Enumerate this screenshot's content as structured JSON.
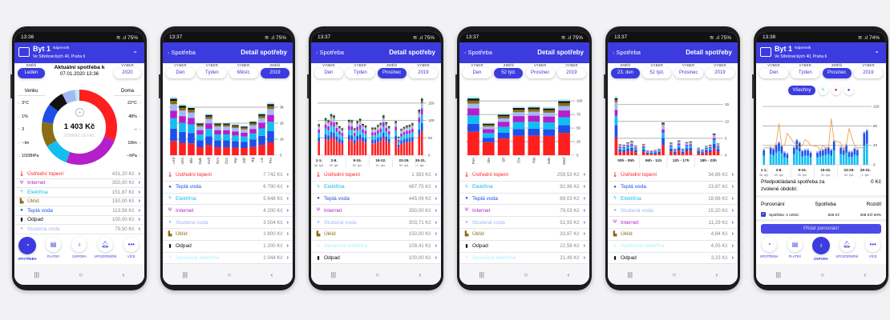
{
  "colors": {
    "heating": "#ff1f1f",
    "hot_water": "#1e4fe8",
    "electricity": "#12bdf0",
    "internet": "#b51fca",
    "cold_water": "#a3b8f5",
    "cleaning": "#8a6d14",
    "waste": "#111111",
    "shared_electricity": "#aef0fb",
    "accent": "#3b3be0",
    "line": "#f0a050"
  },
  "tabbar_labels": [
    "SPOTŘEBA",
    "PLATBY",
    "ÚSPORA",
    "UPOZORNĚNÍ",
    "VÍCE"
  ],
  "phones": [
    {
      "time": "13:36",
      "battery": "75%",
      "header": {
        "type": "apartment",
        "name": "Byt 1",
        "role": "Nájemník",
        "address": "Ve Střešovických 40, Praha 6"
      },
      "left_selector": {
        "caption": "ZMĚŇ",
        "value": "Leden"
      },
      "title": "Aktuální spotřeba k",
      "date": "07.01.2020 13:36",
      "right_selector": {
        "caption": "VYBER",
        "value": "2020"
      },
      "outside": {
        "label": "Venku",
        "values": [
          "3°C",
          "1%",
          "3",
          "--lm",
          "1028hPa"
        ]
      },
      "inside": {
        "label": "Doma",
        "values": [
          "22°C",
          "48%",
          "--",
          "10lm",
          "--hPa"
        ]
      },
      "total": "1 403 Kč",
      "detail_link": "ZOBRAZ DETAIL",
      "list": [
        {
          "key": "heating",
          "label": "Ústřední topení",
          "value": "431,20 Kč"
        },
        {
          "key": "internet",
          "label": "Internet",
          "value": "350,00 Kč"
        },
        {
          "key": "electricity",
          "label": "Elektřina",
          "value": "151,87 Kč"
        },
        {
          "key": "cleaning",
          "label": "Úklid",
          "value": "150,00 Kč"
        },
        {
          "key": "hot_water",
          "label": "Teplá voda",
          "value": "113,56 Kč"
        },
        {
          "key": "waste",
          "label": "Odpad",
          "value": "100,00 Kč"
        },
        {
          "key": "cold_water",
          "label": "Studená voda",
          "value": "79,50 Kč"
        }
      ],
      "tab_active": 0
    },
    {
      "time": "13:37",
      "battery": "75%",
      "header": {
        "type": "detail",
        "back": "Spotřeba",
        "title": "Detail spotřeby"
      },
      "selectors": [
        {
          "caption": "VYBER",
          "value": "Den"
        },
        {
          "caption": "VYBER",
          "value": "Týden"
        },
        {
          "caption": "VYBER",
          "value": "Měsíc"
        },
        {
          "caption": "ZMĚŇ",
          "value": "2019",
          "active": true
        }
      ],
      "chart_data": {
        "type": "bar",
        "stacked": true,
        "categories": [
          "Led",
          "Úno",
          "Bře",
          "Dub",
          "Kvě",
          "Čvn",
          "Čvc",
          "Srp",
          "Zář",
          "Říj",
          "Lis",
          "Pro"
        ],
        "values": [
          3650,
          3200,
          3050,
          2050,
          2600,
          2050,
          2050,
          1950,
          1850,
          2150,
          2650,
          3300
        ],
        "yticks": [
          0,
          1000,
          2000,
          3000
        ],
        "ytick_labels": [
          "0",
          "1k",
          "2k",
          "3k"
        ],
        "ylim": [
          0,
          3800
        ],
        "grid": true
      },
      "list": [
        {
          "key": "heating",
          "label": "Ústřední topení",
          "value": "7 742 Kč"
        },
        {
          "key": "hot_water",
          "label": "Teplá voda",
          "value": "6 790 Kč"
        },
        {
          "key": "electricity",
          "label": "Elektřina",
          "value": "5 648 Kč"
        },
        {
          "key": "internet",
          "label": "Internet",
          "value": "4 200 Kč"
        },
        {
          "key": "cold_water",
          "label": "Studená voda",
          "value": "3 504 Kč"
        },
        {
          "key": "cleaning",
          "label": "Úklid",
          "value": "1 800 Kč"
        },
        {
          "key": "waste",
          "label": "Odpad",
          "value": "1 200 Kč"
        },
        {
          "key": "shared_electricity",
          "label": "Společná elektřina",
          "value": "1 044 Kč"
        }
      ]
    },
    {
      "time": "13:37",
      "battery": "75%",
      "header": {
        "type": "detail",
        "back": "Spotřeba",
        "title": "Detail spotřeby"
      },
      "selectors": [
        {
          "caption": "VYBER",
          "value": "Den"
        },
        {
          "caption": "VYBER",
          "value": "Týden"
        },
        {
          "caption": "ZMĚŇ",
          "value": "Prosinec",
          "active": true
        },
        {
          "caption": "VYBER",
          "value": "2019"
        }
      ],
      "chart_data": {
        "type": "bar",
        "stacked": true,
        "groups": [
          {
            "label": "1-1.",
            "sub": "48. týd."
          },
          {
            "label": "2-8.",
            "sub": "49. týd."
          },
          {
            "label": "9-15.",
            "sub": "50. týd."
          },
          {
            "label": "16-22.",
            "sub": "51. týd."
          },
          {
            "label": "23-29.",
            "sub": "52. týd."
          },
          {
            "label": "30-31.",
            "sub": "1. týd."
          }
        ],
        "values": [
          92,
          110,
          104,
          122,
          118,
          98,
          86,
          80,
          105,
          104,
          80,
          102,
          108,
          93,
          88,
          82,
          82,
          90,
          96,
          118,
          98,
          86,
          102,
          55,
          78,
          84,
          88,
          90,
          95,
          135,
          168
        ],
        "yticks": [
          0,
          50,
          100,
          150
        ],
        "ytick_labels": [
          "0",
          "50",
          "100",
          "150"
        ],
        "ylim": [
          0,
          175
        ],
        "grid": true
      },
      "list": [
        {
          "key": "heating",
          "label": "Ústřední topení",
          "value": "1 383 Kč"
        },
        {
          "key": "electricity",
          "label": "Elektřina",
          "value": "487,75 Kč"
        },
        {
          "key": "hot_water",
          "label": "Teplá voda",
          "value": "445,06 Kč"
        },
        {
          "key": "internet",
          "label": "Internet",
          "value": "350,00 Kč"
        },
        {
          "key": "cold_water",
          "label": "Studená voda",
          "value": "303,71 Kč"
        },
        {
          "key": "cleaning",
          "label": "Úklid",
          "value": "150,00 Kč"
        },
        {
          "key": "shared_electricity",
          "label": "Společná elektřina",
          "value": "109,41 Kč"
        },
        {
          "key": "waste",
          "label": "Odpad",
          "value": "100,00 Kč"
        }
      ]
    },
    {
      "time": "13:37",
      "battery": "75%",
      "header": {
        "type": "detail",
        "back": "Spotřeba",
        "title": "Detail spotřeby"
      },
      "selectors": [
        {
          "caption": "VYBER",
          "value": "Den"
        },
        {
          "caption": "ZMĚŇ",
          "value": "52 týd.",
          "active": true
        },
        {
          "caption": "VYBER",
          "value": "Prosinec"
        },
        {
          "caption": "VYBER",
          "value": "2019"
        }
      ],
      "chart_data": {
        "type": "bar",
        "stacked": true,
        "categories": [
          "Pon",
          "Úte",
          "Stř",
          "Čtv",
          "Pát",
          "Sob",
          "Neď"
        ],
        "values": [
          108,
          60,
          77,
          90,
          91,
          89,
          103
        ],
        "yticks": [
          0,
          25,
          50,
          75,
          100
        ],
        "ytick_labels": [
          "0",
          "25",
          "50",
          "75",
          "100"
        ],
        "ylim": [
          0,
          112
        ],
        "grid": true
      },
      "list": [
        {
          "key": "heating",
          "label": "Ústřední topení",
          "value": "259,53 Kč"
        },
        {
          "key": "electricity",
          "label": "Elektřina",
          "value": "92,96 Kč"
        },
        {
          "key": "hot_water",
          "label": "Teplá voda",
          "value": "89,03 Kč"
        },
        {
          "key": "internet",
          "label": "Internet",
          "value": "79,03 Kč"
        },
        {
          "key": "cold_water",
          "label": "Studená voda",
          "value": "51,93 Kč"
        },
        {
          "key": "cleaning",
          "label": "Úklid",
          "value": "33,87 Kč"
        },
        {
          "key": "waste",
          "label": "Odpad",
          "value": "22,58 Kč"
        },
        {
          "key": "shared_electricity",
          "label": "Společná elektřina",
          "value": "21,49 Kč"
        }
      ]
    },
    {
      "time": "13:37",
      "battery": "75%",
      "header": {
        "type": "detail",
        "back": "Spotřeba",
        "title": "Detail spotřeby"
      },
      "selectors": [
        {
          "caption": "ZMĚŇ",
          "value": "23. den",
          "active": true
        },
        {
          "caption": "VYBER",
          "value": "52 týd."
        },
        {
          "caption": "VYBER",
          "value": "Prosinec"
        },
        {
          "caption": "VYBER",
          "value": "2019"
        }
      ],
      "chart_data": {
        "type": "bar",
        "stacked": true,
        "groups": [
          {
            "label": "00h - 05h"
          },
          {
            "label": "06h - 11h"
          },
          {
            "label": "12h - 17h"
          },
          {
            "label": "18h - 23h"
          }
        ],
        "values": [
          17.5,
          3.3,
          3.2,
          3.9,
          4.3,
          3.0,
          3.4,
          1.5,
          1.4,
          1.6,
          2.0,
          10,
          3.8,
          2.0,
          4.5,
          2.0,
          4.0,
          4.2,
          2.3,
          1.8,
          2.8,
          3.2,
          6.6,
          3.6
        ],
        "yticks": [
          0,
          5,
          10,
          15
        ],
        "ytick_labels": [
          "0",
          "5",
          "10",
          "15"
        ],
        "ylim": [
          0,
          18
        ],
        "grid": true
      },
      "list": [
        {
          "key": "heating",
          "label": "Ústřední topení",
          "value": "34,86 Kč"
        },
        {
          "key": "hot_water",
          "label": "Teplá voda",
          "value": "23,87 Kč"
        },
        {
          "key": "electricity",
          "label": "Elektřina",
          "value": "18,68 Kč"
        },
        {
          "key": "cold_water",
          "label": "Studená voda",
          "value": "15,20 Kč"
        },
        {
          "key": "internet",
          "label": "Internet",
          "value": "11,29 Kč"
        },
        {
          "key": "cleaning",
          "label": "Úklid",
          "value": "4,84 Kč"
        },
        {
          "key": "shared_electricity",
          "label": "Společná elektřina",
          "value": "4,05 Kč"
        },
        {
          "key": "waste",
          "label": "Odpad",
          "value": "3,23 Kč"
        }
      ]
    },
    {
      "time": "13:38",
      "battery": "74%",
      "header": {
        "type": "apartment",
        "name": "Byt 1",
        "role": "Nájemník",
        "address": "Ve Střešovických 40, Praha 6"
      },
      "selectors": [
        {
          "caption": "VYBER",
          "value": "Den"
        },
        {
          "caption": "VYBER",
          "value": "Týden"
        },
        {
          "caption": "ZMĚŇ",
          "value": "Prosinec",
          "active": true
        },
        {
          "caption": "VYBER",
          "value": "2019"
        }
      ],
      "filters": [
        {
          "label": "Všechny",
          "active": true,
          "icon": "all"
        },
        {
          "label": "",
          "icon": "bolt-icon"
        },
        {
          "label": "",
          "icon": "heat-drops-icon"
        },
        {
          "label": "",
          "icon": "water-drops-icon"
        }
      ],
      "chart_data": {
        "type": "bar+line",
        "groups": [
          {
            "label": "1-1.",
            "sub": "48. týd."
          },
          {
            "label": "2-8.",
            "sub": "49. týd."
          },
          {
            "label": "9-15.",
            "sub": "50. týd."
          },
          {
            "label": "16-22.",
            "sub": "51. týd."
          },
          {
            "label": "23-29.",
            "sub": "52. týd."
          },
          {
            "label": "30-31.",
            "sub": "1. týd."
          }
        ],
        "values": [
          30,
          35,
          32,
          40,
          45,
          38,
          25,
          22,
          35,
          50,
          45,
          28,
          30,
          30,
          25,
          25,
          28,
          30,
          33,
          35,
          30,
          48,
          35,
          33,
          40,
          26,
          26,
          33,
          30,
          65,
          70
        ],
        "line": [
          35,
          35,
          33,
          45,
          85,
          40,
          40,
          65,
          45,
          42,
          35,
          40,
          52,
          48,
          40,
          38,
          30,
          40,
          35,
          35,
          95,
          50,
          45,
          30,
          42,
          75,
          55,
          40,
          35,
          35,
          35
        ],
        "yticks": [
          0,
          40,
          80,
          120
        ],
        "ytick_labels": [
          "0",
          "40",
          "80",
          "120"
        ],
        "ylim": [
          0,
          125
        ],
        "grid": true
      },
      "prediction": {
        "label": "Předpokládaná spotřeba za zvolené období:",
        "value": "0 Kč"
      },
      "comparison": {
        "headers": [
          "Porovnání",
          "Spotřeba",
          "Rozdíl"
        ],
        "rows": [
          {
            "checked": true,
            "label": "Spotřeba -1 měsíc",
            "value": "826 Kč",
            "diff": "205 Kč/-20%"
          }
        ]
      },
      "add_button": "Přidat porovnání",
      "tab_active": 2
    }
  ]
}
